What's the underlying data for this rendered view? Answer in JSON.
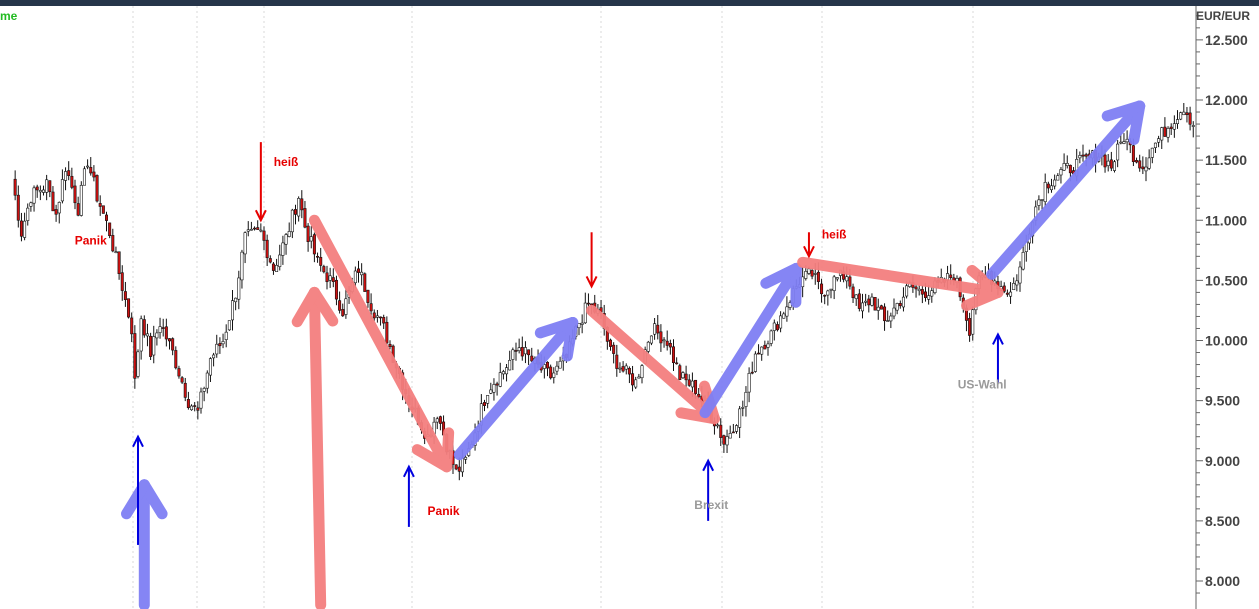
{
  "chart_data": {
    "type": "candlestick",
    "title_fragment": "me",
    "currency_label": "EUR/EUR",
    "y_ticks": [
      8000,
      8500,
      9000,
      9500,
      10000,
      10500,
      11000,
      11500,
      12000,
      12500
    ],
    "y_tick_labels": [
      "8.000",
      "8.500",
      "9.000",
      "9.500",
      "10.000",
      "10.500",
      "11.000",
      "11.500",
      "12.000",
      "12.500"
    ],
    "ylim": [
      7800,
      12800
    ],
    "grid": "vertical dotted",
    "colors": {
      "up": "#ffffff",
      "down": "#cc1111",
      "wick": "#111111",
      "red_arrow": "#f47f7f",
      "blue_arrow": "#7f7ff4",
      "annot_red": "#e60000",
      "annot_blue": "#0000e0",
      "annot_gray": "#9a9a9a",
      "title": "#22bb22",
      "top_bar": "#26354a"
    },
    "price_anchors": [
      {
        "t": 0,
        "v": 11350
      },
      {
        "t": 3,
        "v": 10900
      },
      {
        "t": 6,
        "v": 11200
      },
      {
        "t": 11,
        "v": 11300
      },
      {
        "t": 14,
        "v": 11050
      },
      {
        "t": 17,
        "v": 11450
      },
      {
        "t": 21,
        "v": 11100
      },
      {
        "t": 24,
        "v": 11500
      },
      {
        "t": 27,
        "v": 11200
      },
      {
        "t": 31,
        "v": 10900
      },
      {
        "t": 35,
        "v": 10450
      },
      {
        "t": 38,
        "v": 10100
      },
      {
        "t": 39,
        "v": 9650
      },
      {
        "t": 41,
        "v": 10200
      },
      {
        "t": 44,
        "v": 9900
      },
      {
        "t": 47,
        "v": 10150
      },
      {
        "t": 51,
        "v": 9900
      },
      {
        "t": 56,
        "v": 9500
      },
      {
        "t": 59,
        "v": 9400
      },
      {
        "t": 63,
        "v": 9850
      },
      {
        "t": 67,
        "v": 10000
      },
      {
        "t": 71,
        "v": 10400
      },
      {
        "t": 74,
        "v": 10850
      },
      {
        "t": 79,
        "v": 10900
      },
      {
        "t": 83,
        "v": 10600
      },
      {
        "t": 87,
        "v": 10850
      },
      {
        "t": 91,
        "v": 11200
      },
      {
        "t": 93,
        "v": 10950
      },
      {
        "t": 97,
        "v": 10650
      },
      {
        "t": 101,
        "v": 10500
      },
      {
        "t": 105,
        "v": 10250
      },
      {
        "t": 110,
        "v": 10600
      },
      {
        "t": 114,
        "v": 10300
      },
      {
        "t": 118,
        "v": 10100
      },
      {
        "t": 122,
        "v": 9800
      },
      {
        "t": 126,
        "v": 9500
      },
      {
        "t": 129,
        "v": 9350
      },
      {
        "t": 132,
        "v": 9200
      },
      {
        "t": 135,
        "v": 9400
      },
      {
        "t": 139,
        "v": 9050
      },
      {
        "t": 141,
        "v": 8900
      },
      {
        "t": 144,
        "v": 9000
      },
      {
        "t": 147,
        "v": 9250
      },
      {
        "t": 151,
        "v": 9600
      },
      {
        "t": 156,
        "v": 9750
      },
      {
        "t": 161,
        "v": 9950
      },
      {
        "t": 166,
        "v": 9800
      },
      {
        "t": 171,
        "v": 9700
      },
      {
        "t": 176,
        "v": 9850
      },
      {
        "t": 180,
        "v": 10150
      },
      {
        "t": 183,
        "v": 10300
      },
      {
        "t": 187,
        "v": 10200
      },
      {
        "t": 190,
        "v": 9900
      },
      {
        "t": 194,
        "v": 9750
      },
      {
        "t": 198,
        "v": 9650
      },
      {
        "t": 203,
        "v": 10100
      },
      {
        "t": 208,
        "v": 10000
      },
      {
        "t": 212,
        "v": 9700
      },
      {
        "t": 217,
        "v": 9600
      },
      {
        "t": 221,
        "v": 9400
      },
      {
        "t": 224,
        "v": 9300
      },
      {
        "t": 226,
        "v": 9150
      },
      {
        "t": 229,
        "v": 9300
      },
      {
        "t": 232,
        "v": 9450
      },
      {
        "t": 236,
        "v": 9900
      },
      {
        "t": 241,
        "v": 10050
      },
      {
        "t": 246,
        "v": 10300
      },
      {
        "t": 250,
        "v": 10500
      },
      {
        "t": 254,
        "v": 10550
      },
      {
        "t": 257,
        "v": 10400
      },
      {
        "t": 261,
        "v": 10500
      },
      {
        "t": 265,
        "v": 10550
      },
      {
        "t": 269,
        "v": 10250
      },
      {
        "t": 273,
        "v": 10350
      },
      {
        "t": 277,
        "v": 10150
      },
      {
        "t": 281,
        "v": 10300
      },
      {
        "t": 285,
        "v": 10450
      },
      {
        "t": 289,
        "v": 10400
      },
      {
        "t": 294,
        "v": 10450
      },
      {
        "t": 299,
        "v": 10550
      },
      {
        "t": 302,
        "v": 10300
      },
      {
        "t": 304,
        "v": 10100
      },
      {
        "t": 306,
        "v": 10450
      },
      {
        "t": 310,
        "v": 10550
      },
      {
        "t": 314,
        "v": 10450
      },
      {
        "t": 317,
        "v": 10400
      },
      {
        "t": 320,
        "v": 10600
      },
      {
        "t": 324,
        "v": 11050
      },
      {
        "t": 328,
        "v": 11300
      },
      {
        "t": 333,
        "v": 11400
      },
      {
        "t": 337,
        "v": 11450
      },
      {
        "t": 341,
        "v": 11500
      },
      {
        "t": 345,
        "v": 11550
      },
      {
        "t": 349,
        "v": 11450
      },
      {
        "t": 353,
        "v": 11700
      },
      {
        "t": 356,
        "v": 11550
      },
      {
        "t": 359,
        "v": 11450
      },
      {
        "t": 362,
        "v": 11600
      },
      {
        "t": 366,
        "v": 11750
      },
      {
        "t": 369,
        "v": 11850
      },
      {
        "t": 372,
        "v": 11950
      },
      {
        "t": 375,
        "v": 11800
      }
    ],
    "annotations": [
      {
        "text": "Panik",
        "color": "red",
        "t": 25,
        "v": 10800
      },
      {
        "text": "heiß",
        "color": "red",
        "t": 87,
        "v": 11450
      },
      {
        "text": "Panik",
        "color": "red",
        "t": 137,
        "v": 8550
      },
      {
        "text": "Brexit",
        "color": "gray",
        "t": 222,
        "v": 8600
      },
      {
        "text": "heiß",
        "color": "red",
        "t": 261,
        "v": 10850
      },
      {
        "text": "US-Wahl",
        "color": "gray",
        "t": 308,
        "v": 9600
      }
    ],
    "small_arrows": [
      {
        "color": "red",
        "direction": "down",
        "t": 79,
        "v_from": 11650,
        "v_to": 11000
      },
      {
        "color": "red",
        "direction": "down",
        "t": 184,
        "v_from": 10900,
        "v_to": 10450
      },
      {
        "color": "red",
        "direction": "down",
        "t": 253,
        "v_from": 10900,
        "v_to": 10700
      },
      {
        "color": "blue",
        "direction": "up",
        "t": 40,
        "v_from": 8300,
        "v_to": 9200
      },
      {
        "color": "blue",
        "direction": "up",
        "t": 126,
        "v_from": 8450,
        "v_to": 8950
      },
      {
        "color": "blue",
        "direction": "up",
        "t": 221,
        "v_from": 8500,
        "v_to": 9000
      },
      {
        "color": "blue",
        "direction": "up",
        "t": 313,
        "v_from": 9650,
        "v_to": 10050
      }
    ],
    "trend_arrows": [
      {
        "color": "red",
        "t1": 98,
        "v1": 7800,
        "t2": 96,
        "v2": 10400
      },
      {
        "color": "blue",
        "t1": 42,
        "v1": 7800,
        "t2": 42,
        "v2": 8800
      },
      {
        "color": "red",
        "t1": 96,
        "v1": 11000,
        "t2": 138,
        "v2": 8950
      },
      {
        "color": "blue",
        "t1": 142,
        "v1": 9050,
        "t2": 178,
        "v2": 10150
      },
      {
        "color": "red",
        "t1": 184,
        "v1": 10250,
        "t2": 223,
        "v2": 9350
      },
      {
        "color": "blue",
        "t1": 220,
        "v1": 9400,
        "t2": 249,
        "v2": 10600
      },
      {
        "color": "red",
        "t1": 251,
        "v1": 10650,
        "t2": 313,
        "v2": 10400
      },
      {
        "color": "blue",
        "t1": 311,
        "v1": 10550,
        "t2": 358,
        "v2": 11950
      }
    ]
  }
}
